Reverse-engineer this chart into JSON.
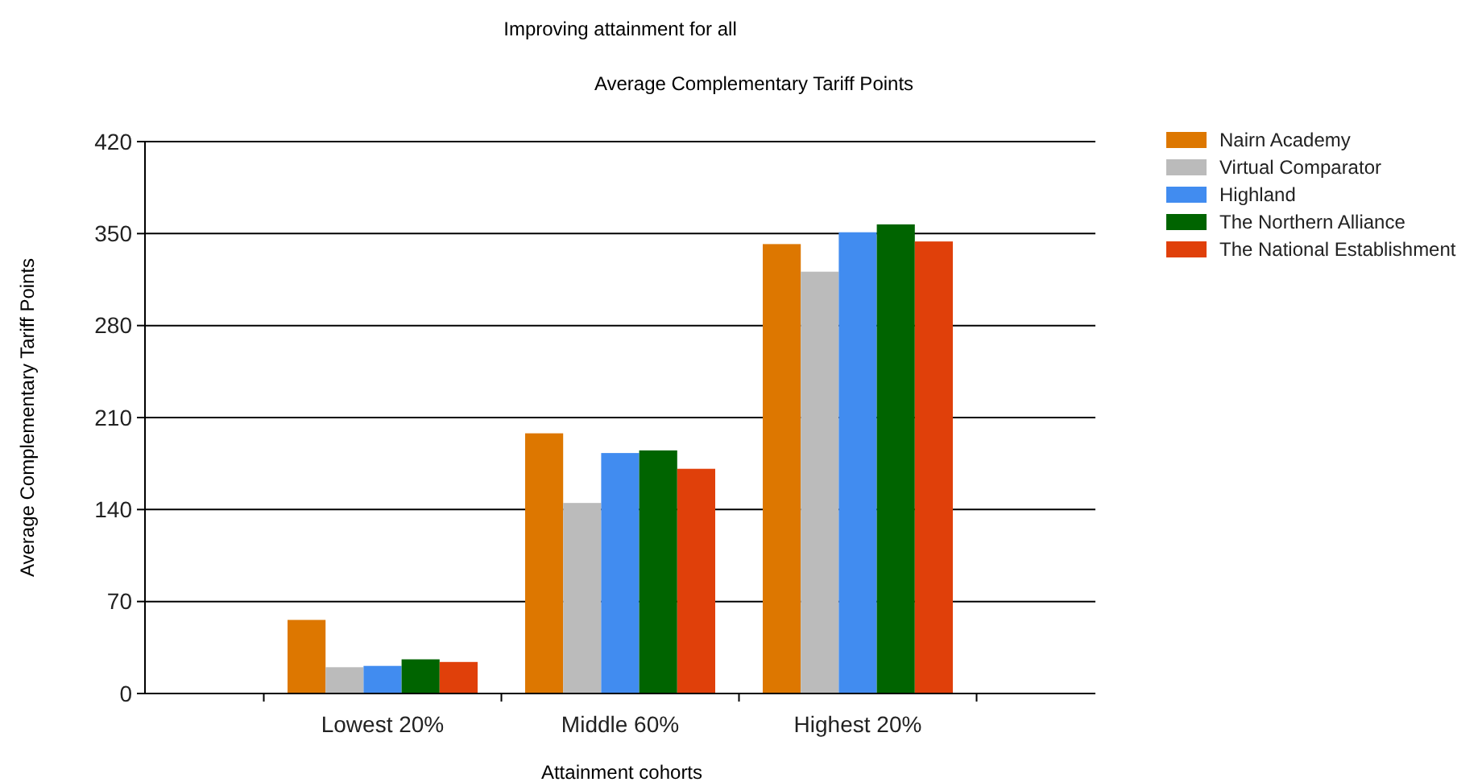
{
  "chart_data": {
    "type": "bar",
    "title": "Improving attainment for all",
    "subtitle": "Average Complementary Tariff Points",
    "xlabel": "Attainment cohorts",
    "ylabel": "Average Complementary Tariff Points",
    "categories": [
      "Lowest 20%",
      "Middle 60%",
      "Highest 20%"
    ],
    "series": [
      {
        "name": "Nairn Academy",
        "color": "#dd7700",
        "values": [
          56,
          198,
          342
        ]
      },
      {
        "name": "Virtual Comparator",
        "color": "#bbbbbb",
        "values": [
          20,
          145,
          321
        ]
      },
      {
        "name": "Highland",
        "color": "#418cf0",
        "values": [
          21,
          183,
          351
        ]
      },
      {
        "name": "The Northern Alliance",
        "color": "#006400",
        "values": [
          26,
          185,
          357
        ]
      },
      {
        "name": "The National Establishment",
        "color": "#e0400a",
        "values": [
          24,
          171,
          344
        ]
      }
    ],
    "ylim": [
      0,
      420
    ],
    "yticks": [
      0,
      70,
      140,
      210,
      280,
      350,
      420
    ],
    "grid": "y",
    "legend": "right"
  }
}
